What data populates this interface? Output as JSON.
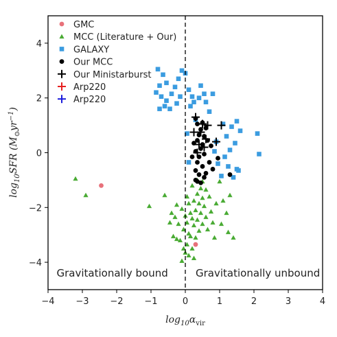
{
  "chart_data": {
    "type": "scatter",
    "xlabel_parts": [
      "log",
      "10",
      "α",
      "vir"
    ],
    "ylabel_parts": [
      "log",
      "10",
      "SFR (M",
      "⊙",
      "yr",
      "−1",
      ")"
    ],
    "xlim": [
      -4,
      4
    ],
    "ylim": [
      -5,
      5
    ],
    "x_ticks": [
      -4,
      -3,
      -2,
      -1,
      0,
      1,
      2,
      3,
      4
    ],
    "x_tick_labels": [
      "−4",
      "−3",
      "−2",
      "−1",
      "0",
      "1",
      "2",
      "3",
      "4"
    ],
    "y_ticks": [
      -4,
      -2,
      0,
      2,
      4
    ],
    "y_tick_labels": [
      "−4",
      "−2",
      "0",
      "2",
      "4"
    ],
    "grid": false,
    "legend_position": "top-left",
    "vline": {
      "x": 0,
      "style": "dashed"
    },
    "annotations": [
      {
        "text": "Gravitationally bound",
        "x": -3.75,
        "y": -4.4
      },
      {
        "text": "Gravitationally unbound",
        "x": 0.3,
        "y": -4.4
      }
    ],
    "series": [
      {
        "name": "GMC",
        "marker": "circle",
        "color": "#e8717a",
        "points": [
          [
            -2.45,
            -1.2
          ],
          [
            0.3,
            -3.35
          ]
        ]
      },
      {
        "name": "MCC (Literature + Our)",
        "marker": "triangle",
        "color": "#4aab34",
        "points": [
          [
            -3.2,
            -0.95
          ],
          [
            -2.9,
            -1.55
          ],
          [
            -1.05,
            -1.95
          ],
          [
            -0.6,
            -1.55
          ],
          [
            -0.25,
            -1.9
          ],
          [
            -0.3,
            -2.35
          ],
          [
            -0.4,
            -2.2
          ],
          [
            -0.45,
            -2.55
          ],
          [
            -0.35,
            -3.05
          ],
          [
            -0.2,
            -2.6
          ],
          [
            -0.15,
            -3.2
          ],
          [
            -0.1,
            -2.05
          ],
          [
            -0.05,
            -2.8
          ],
          [
            -0.05,
            -3.5
          ],
          [
            0.0,
            -2.3
          ],
          [
            0.05,
            -1.6
          ],
          [
            0.05,
            -2.55
          ],
          [
            0.05,
            -3.35
          ],
          [
            0.1,
            -1.85
          ],
          [
            0.1,
            -2.95
          ],
          [
            0.1,
            -3.75
          ],
          [
            0.15,
            -2.2
          ],
          [
            0.15,
            -3.05
          ],
          [
            0.2,
            -1.2
          ],
          [
            0.2,
            -2.4
          ],
          [
            0.25,
            -1.75
          ],
          [
            0.25,
            -2.65
          ],
          [
            0.3,
            -2.1
          ],
          [
            0.3,
            -3.1
          ],
          [
            0.35,
            -1.0
          ],
          [
            0.35,
            -1.5
          ],
          [
            0.35,
            -2.45
          ],
          [
            0.4,
            -1.85
          ],
          [
            0.4,
            -2.85
          ],
          [
            0.45,
            -1.3
          ],
          [
            0.45,
            -2.2
          ],
          [
            0.5,
            -1.05
          ],
          [
            0.5,
            -1.65
          ],
          [
            0.5,
            -2.6
          ],
          [
            0.55,
            -1.95
          ],
          [
            0.6,
            -1.35
          ],
          [
            0.6,
            -2.35
          ],
          [
            0.65,
            -2.8
          ],
          [
            0.7,
            -1.6
          ],
          [
            0.75,
            -2.15
          ],
          [
            0.8,
            -2.55
          ],
          [
            0.85,
            -3.1
          ],
          [
            0.9,
            -1.85
          ],
          [
            1.0,
            -1.05
          ],
          [
            1.05,
            -2.6
          ],
          [
            1.1,
            -1.75
          ],
          [
            1.2,
            -2.2
          ],
          [
            1.25,
            -2.9
          ],
          [
            1.3,
            -1.55
          ],
          [
            1.4,
            -3.1
          ],
          [
            -0.25,
            -3.15
          ],
          [
            -0.1,
            -3.95
          ],
          [
            0.0,
            -3.65
          ],
          [
            0.2,
            -3.5
          ],
          [
            0.25,
            -3.85
          ]
        ]
      },
      {
        "name": "GALAXY",
        "marker": "square",
        "color": "#3b9ce0",
        "points": [
          [
            -0.8,
            3.05
          ],
          [
            -0.65,
            2.85
          ],
          [
            -0.55,
            2.55
          ],
          [
            -0.75,
            2.45
          ],
          [
            -0.85,
            2.2
          ],
          [
            -0.7,
            2.05
          ],
          [
            -0.55,
            1.9
          ],
          [
            -0.4,
            2.15
          ],
          [
            -0.3,
            2.4
          ],
          [
            -0.2,
            2.7
          ],
          [
            -0.1,
            3.0
          ],
          [
            0.0,
            2.9
          ],
          [
            -0.15,
            2.05
          ],
          [
            -0.25,
            1.8
          ],
          [
            -0.45,
            1.6
          ],
          [
            -0.75,
            1.6
          ],
          [
            -0.6,
            1.7
          ],
          [
            0.1,
            2.3
          ],
          [
            0.2,
            2.05
          ],
          [
            0.25,
            1.85
          ],
          [
            0.4,
            2.0
          ],
          [
            0.45,
            2.45
          ],
          [
            0.55,
            2.15
          ],
          [
            0.6,
            1.85
          ],
          [
            0.7,
            1.5
          ],
          [
            0.8,
            2.15
          ],
          [
            0.15,
            1.7
          ],
          [
            0.05,
            0.7
          ],
          [
            0.1,
            -0.35
          ],
          [
            1.1,
            1.05
          ],
          [
            1.2,
            0.6
          ],
          [
            1.35,
            0.95
          ],
          [
            1.5,
            1.15
          ],
          [
            1.6,
            0.8
          ],
          [
            1.45,
            0.35
          ],
          [
            1.3,
            0.1
          ],
          [
            1.15,
            -0.15
          ],
          [
            1.25,
            -0.5
          ],
          [
            1.55,
            -0.65
          ],
          [
            1.4,
            -0.9
          ],
          [
            1.05,
            -0.85
          ],
          [
            2.1,
            0.7
          ],
          [
            2.15,
            -0.05
          ],
          [
            0.9,
            0.4
          ],
          [
            0.85,
            0.05
          ],
          [
            0.95,
            -0.4
          ],
          [
            1.5,
            -0.6
          ],
          [
            0.3,
            1.2
          ]
        ]
      },
      {
        "name": "Our MCC",
        "marker": "circle",
        "color": "#000000",
        "points": [
          [
            0.3,
            1.25
          ],
          [
            0.35,
            1.05
          ],
          [
            0.45,
            0.85
          ],
          [
            0.5,
            1.1
          ],
          [
            0.6,
            0.9
          ],
          [
            0.4,
            0.65
          ],
          [
            0.55,
            0.6
          ],
          [
            0.35,
            0.45
          ],
          [
            0.5,
            0.3
          ],
          [
            0.45,
            0.15
          ],
          [
            0.3,
            0.05
          ],
          [
            0.4,
            -0.15
          ],
          [
            0.55,
            -0.05
          ],
          [
            0.35,
            -0.35
          ],
          [
            0.5,
            -0.5
          ],
          [
            0.3,
            -0.65
          ],
          [
            0.4,
            -0.8
          ],
          [
            0.55,
            -0.9
          ],
          [
            0.35,
            -1.05
          ],
          [
            0.45,
            -1.1
          ],
          [
            0.7,
            -0.35
          ],
          [
            0.8,
            -0.6
          ],
          [
            0.75,
            0.25
          ],
          [
            0.95,
            -0.2
          ],
          [
            1.3,
            -0.8
          ],
          [
            0.65,
            0.45
          ],
          [
            0.25,
            0.35
          ],
          [
            0.2,
            -0.15
          ],
          [
            0.6,
            -0.75
          ],
          [
            0.3,
            -1.0
          ]
        ]
      },
      {
        "name": "Our Ministarburst",
        "marker": "plus",
        "color": "#000000",
        "points": [
          [
            0.3,
            1.3
          ],
          [
            0.5,
            1.05
          ],
          [
            0.65,
            1.0
          ],
          [
            0.45,
            0.75
          ],
          [
            0.6,
            0.5
          ],
          [
            0.4,
            0.3
          ],
          [
            0.55,
            0.2
          ],
          [
            0.35,
            0.0
          ],
          [
            0.9,
            0.4
          ],
          [
            1.05,
            1.0
          ],
          [
            0.25,
            0.75
          ]
        ]
      },
      {
        "name": "Arp220",
        "marker": "plus",
        "color": "#e62020",
        "points": []
      },
      {
        "name": "Arp220",
        "marker": "plus",
        "color": "#1a1adb",
        "points": []
      }
    ]
  }
}
